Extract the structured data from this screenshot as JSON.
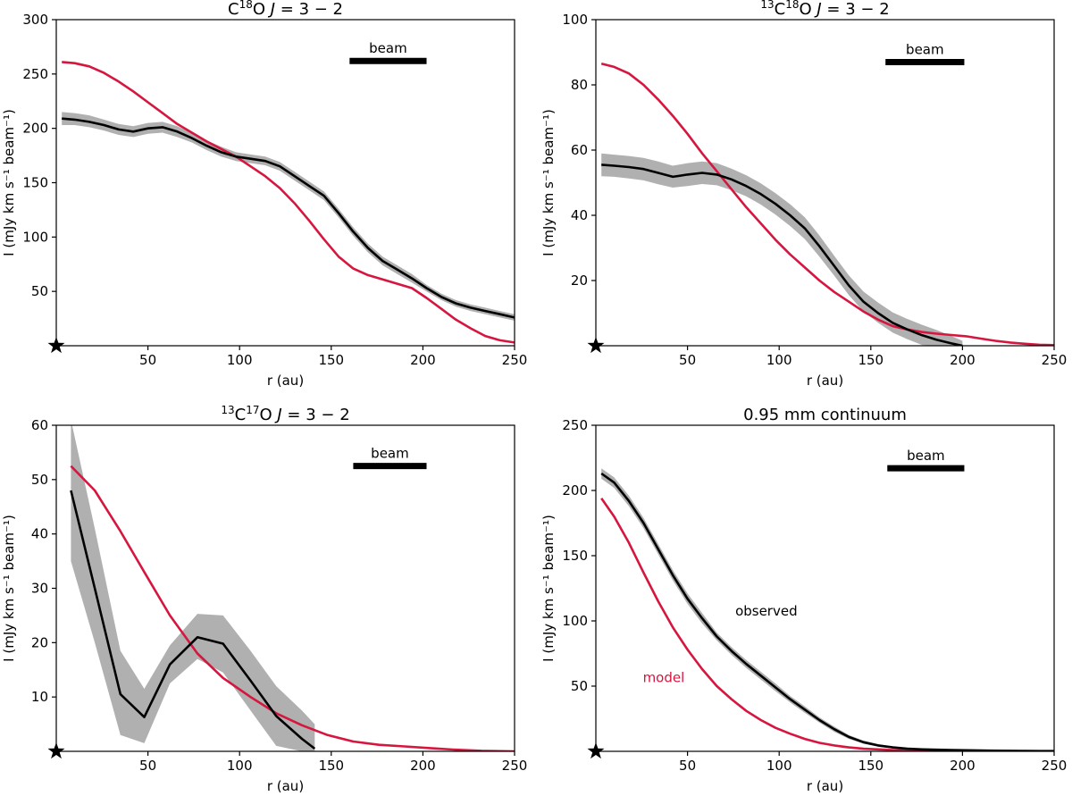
{
  "figure": {
    "colors": {
      "observed": "#000000",
      "model": "#d6163f",
      "band": "#b0b0b0",
      "axis": "#000000"
    }
  },
  "chart_data": [
    {
      "id": "c18o",
      "type": "line",
      "title_parts": {
        "pre": "C",
        "sup": "18",
        "post": "O ",
        "ital": "J",
        "tail": " = 3 − 2"
      },
      "title": "C18O J = 3 − 2",
      "xlabel": "r (au)",
      "ylabel": "I (mJy km s⁻¹ beam⁻¹)",
      "xlim": [
        0,
        250
      ],
      "ylim": [
        0,
        300
      ],
      "xticks": [
        50,
        100,
        150,
        200,
        250
      ],
      "yticks": [
        50,
        100,
        150,
        200,
        250,
        300
      ],
      "beam": {
        "label": "beam",
        "x_start": 160,
        "x_end": 202,
        "y": 262
      },
      "series": [
        {
          "name": "observed",
          "color": "#000000",
          "x": [
            3,
            10,
            18,
            26,
            34,
            42,
            50,
            58,
            66,
            74,
            82,
            90,
            98,
            106,
            114,
            122,
            130,
            138,
            146,
            154,
            162,
            170,
            178,
            186,
            194,
            202,
            210,
            218,
            226,
            234,
            242,
            250
          ],
          "y": [
            209,
            208,
            206,
            203,
            199,
            197,
            200,
            201,
            197,
            191,
            184,
            178,
            174,
            172,
            170,
            165,
            156,
            147,
            138,
            122,
            105,
            90,
            78,
            70,
            62,
            53,
            45,
            39,
            35,
            32,
            29,
            26
          ]
        },
        {
          "name": "model",
          "color": "#d6163f",
          "x": [
            3,
            10,
            18,
            26,
            34,
            42,
            50,
            58,
            66,
            74,
            82,
            90,
            98,
            106,
            114,
            122,
            130,
            138,
            146,
            154,
            162,
            170,
            178,
            186,
            194,
            202,
            210,
            218,
            226,
            234,
            242,
            250
          ],
          "y": [
            261,
            260,
            257,
            251,
            243,
            234,
            224,
            214,
            204,
            196,
            188,
            181,
            174,
            165,
            156,
            145,
            131,
            115,
            98,
            82,
            71,
            65,
            61,
            57,
            53,
            44,
            34,
            24,
            16,
            9,
            5,
            3
          ]
        }
      ],
      "bands": [
        {
          "name": "observed-uncertainty",
          "color": "#b0b0b0",
          "x": [
            3,
            10,
            18,
            26,
            34,
            42,
            50,
            58,
            66,
            74,
            82,
            90,
            98,
            106,
            114,
            122,
            130,
            138,
            146,
            154,
            162,
            170,
            178,
            186,
            194,
            202,
            210,
            218,
            226,
            234,
            242,
            250
          ],
          "lower": [
            203,
            203,
            201,
            198,
            194,
            192,
            195,
            196,
            192,
            187,
            180,
            174,
            170,
            168,
            166,
            161,
            152,
            143,
            134,
            118,
            101,
            86,
            74,
            66,
            58,
            50,
            42,
            36,
            32,
            29,
            26,
            23
          ],
          "upper": [
            215,
            214,
            212,
            208,
            204,
            202,
            205,
            206,
            202,
            196,
            189,
            183,
            178,
            176,
            174,
            169,
            160,
            151,
            142,
            126,
            109,
            94,
            82,
            74,
            66,
            56,
            48,
            42,
            38,
            35,
            32,
            29
          ]
        }
      ]
    },
    {
      "id": "13c18o",
      "type": "line",
      "title_parts": {
        "pre_sup": "13",
        "pre": "C",
        "sup": "18",
        "post": "O ",
        "ital": "J",
        "tail": " = 3 − 2"
      },
      "title": "13C18O J = 3 − 2",
      "xlabel": "r (au)",
      "ylabel": "I (mJy km s⁻¹ beam⁻¹)",
      "xlim": [
        0,
        250
      ],
      "ylim": [
        0,
        100
      ],
      "xticks": [
        50,
        100,
        150,
        200,
        250
      ],
      "yticks": [
        20,
        40,
        60,
        80,
        100
      ],
      "beam": {
        "label": "beam",
        "x_start": 158,
        "x_end": 201,
        "y": 87
      },
      "series": [
        {
          "name": "observed",
          "color": "#000000",
          "x": [
            3,
            10,
            18,
            26,
            34,
            42,
            50,
            58,
            66,
            74,
            82,
            90,
            98,
            106,
            114,
            122,
            130,
            138,
            146,
            154,
            162,
            170,
            178,
            186,
            194,
            200
          ],
          "y": [
            55.5,
            55.2,
            54.8,
            54.2,
            53.0,
            51.8,
            52.5,
            53.0,
            52.5,
            51.0,
            49.0,
            46.5,
            43.5,
            40.0,
            36.0,
            30.5,
            24.5,
            18.5,
            13.5,
            10.0,
            7.0,
            5.0,
            3.2,
            1.8,
            0.7,
            0.0
          ]
        },
        {
          "name": "model",
          "color": "#d6163f",
          "x": [
            3,
            10,
            18,
            26,
            34,
            42,
            50,
            58,
            66,
            74,
            82,
            90,
            98,
            106,
            114,
            122,
            130,
            138,
            146,
            154,
            162,
            170,
            178,
            186,
            194,
            202,
            210,
            218,
            226,
            234,
            242,
            250
          ],
          "y": [
            86.5,
            85.5,
            83.5,
            80.0,
            75.5,
            70.5,
            65.0,
            59.0,
            53.5,
            48.0,
            42.5,
            37.5,
            32.5,
            28.0,
            24.0,
            20.0,
            16.5,
            13.5,
            10.5,
            8.0,
            6.0,
            5.0,
            4.2,
            3.7,
            3.3,
            2.9,
            2.2,
            1.5,
            1.0,
            0.6,
            0.3,
            0.2
          ]
        }
      ],
      "bands": [
        {
          "name": "observed-uncertainty",
          "color": "#b0b0b0",
          "x": [
            3,
            10,
            18,
            26,
            34,
            42,
            50,
            58,
            66,
            74,
            82,
            90,
            98,
            106,
            114,
            122,
            130,
            138,
            146,
            154,
            162,
            170,
            178,
            186,
            194,
            200
          ],
          "lower": [
            52.0,
            51.8,
            51.3,
            50.7,
            49.5,
            48.5,
            49.0,
            49.6,
            49.2,
            47.7,
            45.8,
            43.3,
            40.2,
            36.7,
            32.7,
            27.3,
            21.5,
            15.5,
            10.5,
            7.0,
            4.0,
            2.0,
            0.2,
            0.0,
            0.0,
            0.0
          ],
          "upper": [
            59.0,
            58.6,
            58.2,
            57.6,
            56.5,
            55.2,
            56.0,
            56.5,
            56.0,
            54.3,
            52.3,
            49.8,
            46.8,
            43.4,
            39.4,
            33.8,
            27.6,
            21.6,
            16.6,
            13.2,
            10.2,
            8.2,
            6.4,
            4.8,
            3.0,
            1.5
          ]
        }
      ]
    },
    {
      "id": "13c17o",
      "type": "line",
      "title_parts": {
        "pre_sup": "13",
        "pre": "C",
        "sup": "17",
        "post": "O ",
        "ital": "J",
        "tail": " = 3 − 2"
      },
      "title": "13C17O J = 3 − 2",
      "xlabel": "r (au)",
      "ylabel": "I (mJy km s⁻¹ beam⁻¹)",
      "xlim": [
        0,
        250
      ],
      "ylim": [
        0,
        60
      ],
      "xticks": [
        50,
        100,
        150,
        200,
        250
      ],
      "yticks": [
        10,
        20,
        30,
        40,
        50,
        60
      ],
      "beam": {
        "label": "beam",
        "x_start": 162,
        "x_end": 202,
        "y": 52.5
      },
      "series": [
        {
          "name": "observed",
          "color": "#000000",
          "x": [
            8,
            21,
            35,
            48,
            62,
            77,
            91,
            106,
            120,
            134,
            141
          ],
          "y": [
            48,
            30,
            10.5,
            6.3,
            16.0,
            21.0,
            19.8,
            13.0,
            6.5,
            2.3,
            0.5
          ]
        },
        {
          "name": "model",
          "color": "#d6163f",
          "x": [
            8,
            21,
            35,
            48,
            62,
            77,
            91,
            106,
            120,
            134,
            148,
            162,
            176,
            190,
            204,
            218,
            232,
            250
          ],
          "y": [
            52.5,
            48,
            40.5,
            33,
            25,
            18,
            13.5,
            10,
            7,
            4.8,
            3.0,
            1.8,
            1.2,
            0.9,
            0.6,
            0.3,
            0.1,
            0.0
          ]
        }
      ],
      "bands": [
        {
          "name": "observed-uncertainty",
          "color": "#b0b0b0",
          "x": [
            8,
            21,
            35,
            48,
            62,
            77,
            91,
            106,
            120,
            134,
            141
          ],
          "lower": [
            35,
            20,
            3.0,
            1.5,
            12.5,
            17.0,
            14.5,
            7.5,
            1.0,
            0.0,
            0.0
          ],
          "upper": [
            61,
            41,
            18.5,
            11.5,
            19.5,
            25.3,
            25.0,
            18.5,
            12.0,
            7.5,
            5.0
          ]
        }
      ]
    },
    {
      "id": "continuum",
      "type": "line",
      "title_parts": {
        "pre": "0.95 mm continuum"
      },
      "title": "0.95 mm continuum",
      "xlabel": "r (au)",
      "ylabel": "I (mJy km s⁻¹ beam⁻¹)",
      "xlim": [
        0,
        250
      ],
      "ylim": [
        0,
        250
      ],
      "xticks": [
        50,
        100,
        150,
        200,
        250
      ],
      "yticks": [
        50,
        100,
        150,
        200,
        250
      ],
      "beam": {
        "label": "beam",
        "x_start": 159,
        "x_end": 201,
        "y": 217
      },
      "annotations": [
        {
          "text": "observed",
          "x": 93,
          "y": 104,
          "color": "#000000"
        },
        {
          "text": "model",
          "x": 37,
          "y": 53,
          "color": "#d6163f"
        }
      ],
      "series": [
        {
          "name": "observed",
          "color": "#000000",
          "x": [
            3,
            10,
            18,
            26,
            34,
            42,
            50,
            58,
            66,
            74,
            82,
            90,
            98,
            106,
            114,
            122,
            130,
            138,
            146,
            154,
            162,
            170,
            178,
            186,
            194,
            202,
            210,
            218,
            226,
            234,
            242,
            250
          ],
          "y": [
            213,
            206,
            192,
            175,
            155,
            135,
            117,
            102,
            88,
            77,
            67,
            58,
            49,
            40,
            32,
            24,
            17,
            11,
            7,
            4.5,
            3,
            2,
            1.5,
            1.2,
            1,
            0.8,
            0.6,
            0.5,
            0.4,
            0.3,
            0.2,
            0.2
          ]
        },
        {
          "name": "model",
          "color": "#d6163f",
          "x": [
            3,
            10,
            18,
            26,
            34,
            42,
            50,
            58,
            66,
            74,
            82,
            90,
            98,
            106,
            114,
            122,
            130,
            138,
            146,
            154,
            162,
            170,
            178,
            186,
            194,
            202,
            210,
            218,
            226,
            234,
            242,
            250
          ],
          "y": [
            194,
            180,
            160,
            137,
            115,
            95,
            78,
            63,
            50,
            40,
            31,
            24,
            18,
            13.5,
            9.5,
            6.5,
            4.5,
            3,
            2,
            1.5,
            1,
            0.7,
            0.5,
            0.4,
            0.3,
            0.2,
            0.2,
            0.1,
            0.1,
            0.1,
            0.1,
            0.1
          ]
        }
      ],
      "bands": [
        {
          "name": "observed-uncertainty",
          "color": "#b0b0b0",
          "x": [
            3,
            10,
            18,
            26,
            34,
            42,
            50,
            58,
            66,
            74,
            82,
            90,
            98,
            106,
            114,
            122,
            130,
            138,
            146,
            154,
            162,
            170,
            178,
            186,
            194,
            202,
            210,
            218,
            226,
            234,
            242,
            250
          ],
          "lower": [
            209,
            202,
            188,
            171,
            151,
            131,
            113,
            98,
            85,
            74,
            64,
            55,
            46,
            37.5,
            29.5,
            22,
            15,
            9.5,
            5.8,
            3.5,
            2.2,
            1.4,
            1,
            0.7,
            0.5,
            0.4,
            0.3,
            0.2,
            0.1,
            0.1,
            0.1,
            0.1
          ],
          "upper": [
            217,
            210,
            196,
            179,
            159,
            139,
            121,
            106,
            91,
            80,
            70,
            61,
            52,
            42.5,
            34.5,
            26,
            19,
            12.5,
            8.2,
            5.5,
            3.8,
            2.6,
            2,
            1.7,
            1.5,
            1.2,
            0.9,
            0.8,
            0.7,
            0.5,
            0.3,
            0.3
          ]
        }
      ]
    }
  ]
}
